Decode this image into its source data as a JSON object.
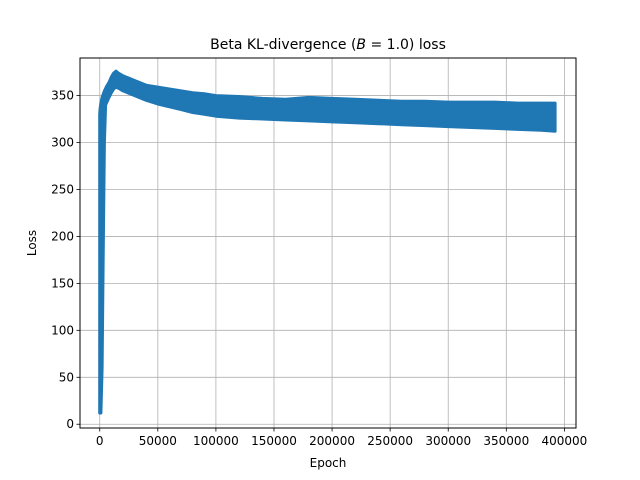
{
  "chart_data": {
    "type": "line",
    "title_parts": {
      "before": "Beta KL-divergence (",
      "var": "B",
      "after": " = 1.0) loss"
    },
    "xlabel": "Epoch",
    "ylabel": "Loss",
    "xlim": [
      -17000,
      410000
    ],
    "ylim": [
      -4,
      390
    ],
    "xticks": [
      0,
      50000,
      100000,
      150000,
      200000,
      250000,
      300000,
      350000,
      400000
    ],
    "yticks": [
      0,
      50,
      100,
      150,
      200,
      250,
      300,
      350
    ],
    "grid": true,
    "series": [
      {
        "color": "#1f77b4",
        "upper": [
          [
            0,
            330
          ],
          [
            300,
            336
          ],
          [
            1000,
            342
          ],
          [
            2000,
            348
          ],
          [
            4000,
            355
          ],
          [
            6000,
            360
          ],
          [
            8000,
            364
          ],
          [
            10000,
            370
          ],
          [
            12000,
            374
          ],
          [
            14000,
            376
          ],
          [
            16000,
            374
          ],
          [
            20000,
            371
          ],
          [
            30000,
            366
          ],
          [
            40000,
            361
          ],
          [
            50000,
            359
          ],
          [
            60000,
            357
          ],
          [
            70000,
            355
          ],
          [
            80000,
            353
          ],
          [
            90000,
            352
          ],
          [
            100000,
            350
          ],
          [
            120000,
            349
          ],
          [
            140000,
            347
          ],
          [
            160000,
            346
          ],
          [
            180000,
            348
          ],
          [
            200000,
            347
          ],
          [
            220000,
            346
          ],
          [
            240000,
            345
          ],
          [
            260000,
            344
          ],
          [
            280000,
            344
          ],
          [
            300000,
            343
          ],
          [
            320000,
            343
          ],
          [
            340000,
            343
          ],
          [
            360000,
            342
          ],
          [
            380000,
            342
          ],
          [
            392000,
            342
          ]
        ],
        "lower": [
          [
            0,
            12
          ],
          [
            1000,
            12
          ],
          [
            2000,
            60
          ],
          [
            3000,
            180
          ],
          [
            4000,
            300
          ],
          [
            5000,
            340
          ],
          [
            8000,
            348
          ],
          [
            10000,
            353
          ],
          [
            12000,
            357
          ],
          [
            14000,
            359
          ],
          [
            16000,
            358
          ],
          [
            20000,
            355
          ],
          [
            30000,
            350
          ],
          [
            40000,
            345
          ],
          [
            50000,
            341
          ],
          [
            60000,
            338
          ],
          [
            70000,
            335
          ],
          [
            80000,
            332
          ],
          [
            90000,
            330
          ],
          [
            100000,
            328
          ],
          [
            120000,
            326
          ],
          [
            140000,
            325
          ],
          [
            160000,
            324
          ],
          [
            180000,
            323
          ],
          [
            200000,
            322
          ],
          [
            220000,
            321
          ],
          [
            240000,
            320
          ],
          [
            260000,
            319
          ],
          [
            280000,
            318
          ],
          [
            300000,
            317
          ],
          [
            320000,
            316
          ],
          [
            340000,
            315
          ],
          [
            360000,
            314
          ],
          [
            380000,
            313
          ],
          [
            392000,
            312
          ]
        ]
      }
    ]
  }
}
